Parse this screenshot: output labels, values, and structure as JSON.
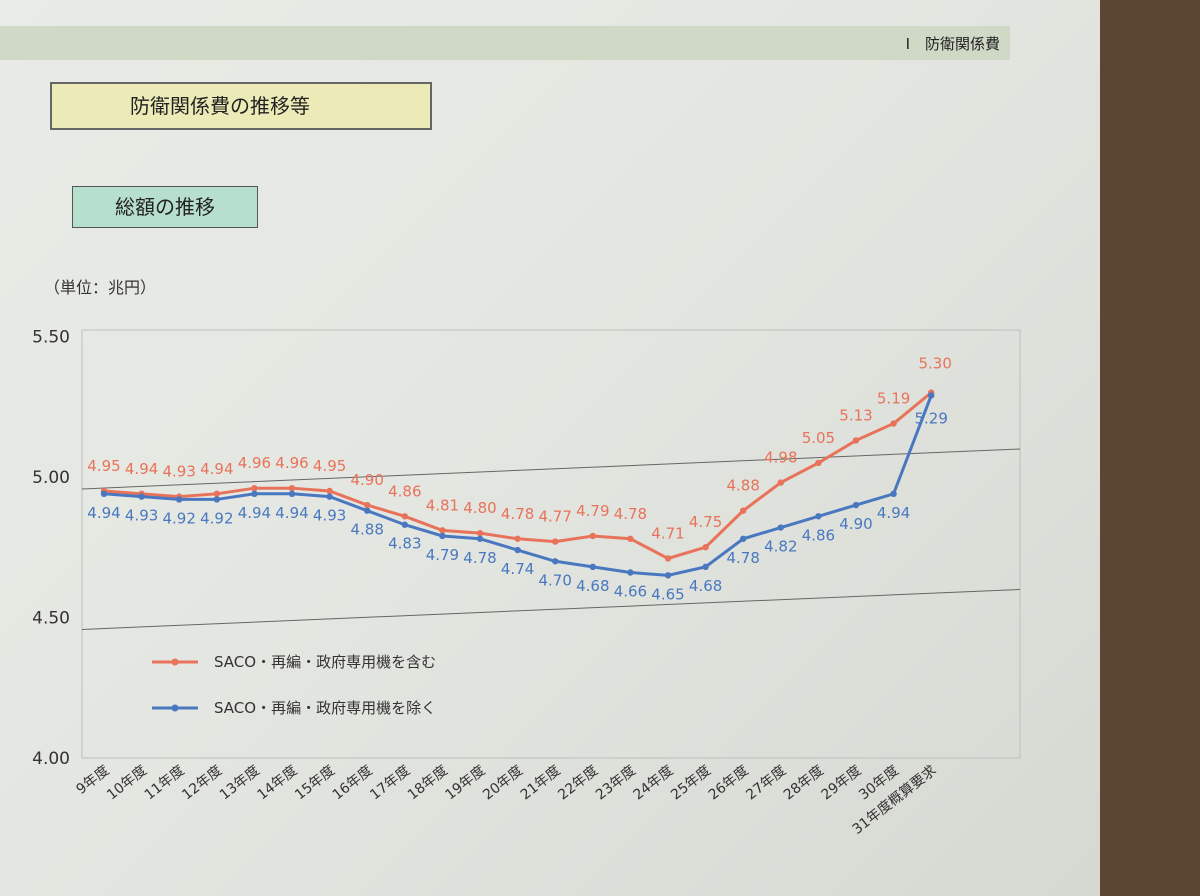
{
  "header": {
    "chapter_label": "Ⅰ　防衛関係費",
    "page_title": "防衛関係費の推移等",
    "section_title": "総額の推移",
    "unit": "（単位：兆円）"
  },
  "chart_data": {
    "type": "line",
    "ylim": [
      4.0,
      5.5
    ],
    "yticks": [
      "4.00",
      "4.50",
      "5.00",
      "5.50"
    ],
    "categories": [
      "9年度",
      "10年度",
      "11年度",
      "12年度",
      "13年度",
      "14年度",
      "15年度",
      "16年度",
      "17年度",
      "18年度",
      "19年度",
      "20年度",
      "21年度",
      "22年度",
      "23年度",
      "24年度",
      "25年度",
      "26年度",
      "27年度",
      "28年度",
      "29年度",
      "30年度",
      "31年度概算要求"
    ],
    "series": [
      {
        "name": "SACO・再編・政府専用機を含む",
        "color": "#e8735a",
        "values": [
          4.95,
          4.94,
          4.93,
          4.94,
          4.96,
          4.96,
          4.95,
          4.9,
          4.86,
          4.81,
          4.8,
          4.78,
          4.77,
          4.79,
          4.78,
          4.71,
          4.75,
          4.88,
          4.98,
          5.05,
          5.13,
          5.19,
          5.3
        ],
        "labels": [
          "4.95",
          "4.94",
          "4.93",
          "4.94",
          "4.96",
          "4.96",
          "4.95",
          "4.90",
          "4.86",
          "4.81",
          "4.80",
          "4.78",
          "4.77",
          "4.79",
          "4.78",
          "4.71",
          "4.75",
          "4.88",
          "4.98",
          "5.05",
          "5.13",
          "5.19",
          "5.30"
        ]
      },
      {
        "name": "SACO・再編・政府専用機を除く",
        "color": "#4a78c0",
        "values": [
          4.94,
          4.93,
          4.92,
          4.92,
          4.94,
          4.94,
          4.93,
          4.88,
          4.83,
          4.79,
          4.78,
          4.74,
          4.7,
          4.68,
          4.66,
          4.65,
          4.68,
          4.78,
          4.82,
          4.86,
          4.9,
          4.94,
          5.29
        ],
        "labels": [
          "4.94",
          "4.93",
          "4.92",
          "4.92",
          "4.94",
          "4.94",
          "4.93",
          "4.88",
          "4.83",
          "4.79",
          "4.78",
          "4.74",
          "4.70",
          "4.68",
          "4.66",
          "4.65",
          "4.68",
          "4.78",
          "4.82",
          "4.86",
          "4.90",
          "4.94",
          "5.29"
        ]
      }
    ]
  }
}
